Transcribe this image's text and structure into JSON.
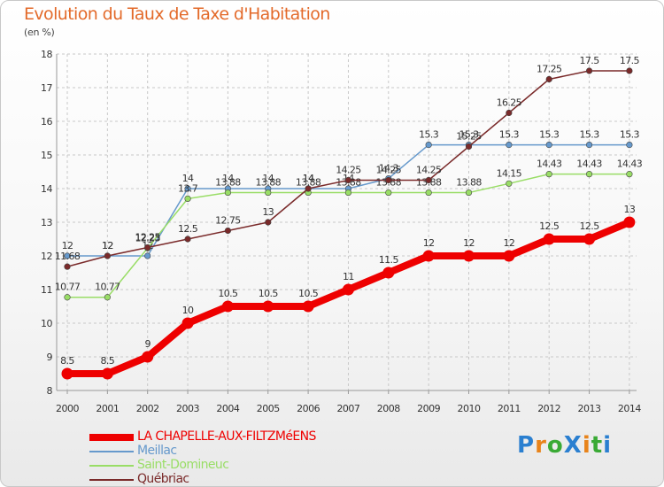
{
  "title": "Evolution du Taux de Taxe d'Habitation",
  "unit": "(en %)",
  "logo": {
    "text": "ProXiti",
    "letter_colors": [
      "#2a7fd0",
      "#e8831a",
      "#3aaa35",
      "#2a7fd0",
      "#e8831a",
      "#3aaa35",
      "#2a7fd0"
    ]
  },
  "chart_data": {
    "type": "line",
    "x": [
      2000,
      2001,
      2002,
      2003,
      2004,
      2005,
      2006,
      2007,
      2008,
      2009,
      2010,
      2011,
      2012,
      2013,
      2014
    ],
    "ylim": [
      8,
      18
    ],
    "yticks": [
      8,
      9,
      10,
      11,
      12,
      13,
      14,
      15,
      16,
      17,
      18
    ],
    "grid": true,
    "grid_style": "dashed",
    "legend_position": "bottom-left",
    "series": [
      {
        "name": "LA CHAPELLE-AUX-FILTZMéENS",
        "color": "#ee0000",
        "emphasis": "thick",
        "values": [
          8.5,
          8.5,
          9,
          10,
          10.5,
          10.5,
          10.5,
          11,
          11.5,
          12,
          12,
          12,
          12.5,
          12.5,
          13
        ],
        "labels": [
          "8.5",
          "8.5",
          "9",
          "10",
          "10.5",
          "10.5",
          "10.5",
          "11",
          "11.5",
          "12",
          "12",
          "12",
          "12.5",
          "12.5",
          "13"
        ]
      },
      {
        "name": "Meillac",
        "color": "#6699cc",
        "emphasis": "thin",
        "values": [
          12,
          12,
          12,
          14,
          14,
          14,
          14,
          14,
          14.3,
          15.3,
          15.3,
          15.3,
          15.3,
          15.3,
          15.3
        ],
        "labels": [
          "12",
          "12",
          "12",
          "14",
          "14",
          "14",
          "14",
          "14",
          "14.3",
          "15.3",
          "15.3",
          "15.3",
          "15.3",
          "15.3",
          "15.3"
        ]
      },
      {
        "name": "Saint-Domineuc",
        "color": "#99dd66",
        "emphasis": "thin",
        "values": [
          10.77,
          10.77,
          12.23,
          13.7,
          13.88,
          13.88,
          13.88,
          13.88,
          13.88,
          13.88,
          13.88,
          14.15,
          14.43,
          14.43,
          14.43
        ],
        "labels": [
          "10.77",
          "10.77",
          "12.23",
          "13.7",
          "13.88",
          "13.88",
          "13.88",
          "13.88",
          "13.88",
          "13.88",
          "13.88",
          "14.15",
          "14.43",
          "14.43",
          "14.43"
        ]
      },
      {
        "name": "Québriac",
        "color": "#7a2a2a",
        "emphasis": "thin",
        "values": [
          11.68,
          12,
          12.25,
          12.5,
          12.75,
          13,
          14,
          14.25,
          14.25,
          14.25,
          15.25,
          16.25,
          17.25,
          17.5,
          17.5
        ],
        "labels": [
          "11.68",
          "12",
          "12.25",
          "12.5",
          "12.75",
          "13",
          "14",
          "14.25",
          "14.25",
          "14.25",
          "15.25",
          "16.25",
          "17.25",
          "17.5",
          "17.5"
        ]
      }
    ]
  }
}
